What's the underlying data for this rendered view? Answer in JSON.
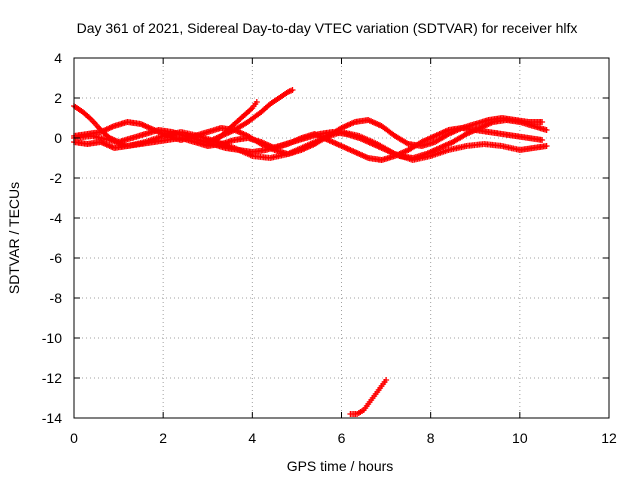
{
  "chart_data": {
    "type": "scatter",
    "title": "Day 361 of 2021, Sidereal Day-to-day VTEC variation (SDTVAR) for receiver hlfx",
    "xlabel": "GPS time / hours",
    "ylabel": "SDTVAR / TECUs",
    "xlim": [
      0,
      12
    ],
    "ylim": [
      -14,
      4
    ],
    "xticks": [
      "0",
      "2",
      "4",
      "6",
      "8",
      "10",
      "12"
    ],
    "yticks": [
      "4",
      "2",
      "0",
      "-2",
      "-4",
      "-6",
      "-8",
      "-10",
      "-12",
      "-14"
    ],
    "grid": true,
    "marker": "plus",
    "color": "#ff0000",
    "series": [
      {
        "x": [
          0.0,
          0.2,
          0.4,
          0.6,
          0.8,
          1.0,
          1.3,
          1.6,
          1.9,
          2.2,
          2.5,
          2.8,
          3.1,
          3.4,
          3.7,
          4.0,
          4.3,
          4.6,
          4.9,
          5.2,
          5.5,
          5.8,
          6.1,
          6.4,
          6.7,
          7.0,
          7.3,
          7.6,
          7.9,
          8.2,
          8.5,
          8.8,
          9.1,
          9.4,
          9.7,
          10.0,
          10.3,
          10.6
        ],
        "y": [
          1.6,
          1.3,
          0.9,
          0.4,
          0.0,
          -0.2,
          0.0,
          0.2,
          0.4,
          0.3,
          0.1,
          -0.1,
          -0.3,
          -0.5,
          -0.6,
          -0.7,
          -0.6,
          -0.4,
          -0.2,
          0.0,
          0.2,
          0.3,
          0.2,
          0.0,
          -0.3,
          -0.6,
          -0.9,
          -1.0,
          -0.8,
          -0.5,
          -0.2,
          0.2,
          0.5,
          0.8,
          0.9,
          0.8,
          0.6,
          0.4
        ]
      },
      {
        "x": [
          0.0,
          0.3,
          0.6,
          0.9,
          1.2,
          1.5,
          1.8,
          2.1,
          2.4,
          2.7,
          3.0,
          3.3,
          3.6,
          3.9,
          4.2,
          4.5,
          4.8,
          5.1,
          5.4,
          5.7,
          6.0,
          6.3,
          6.6,
          6.9,
          7.2,
          7.5,
          7.8,
          8.1,
          8.4,
          8.7,
          9.0,
          9.3,
          9.6,
          9.9,
          10.2,
          10.5
        ],
        "y": [
          0.1,
          0.2,
          0.3,
          0.6,
          0.8,
          0.7,
          0.4,
          0.1,
          -0.1,
          0.1,
          0.3,
          0.5,
          0.4,
          0.1,
          -0.3,
          -0.6,
          -0.8,
          -0.6,
          -0.3,
          0.1,
          0.5,
          0.8,
          0.9,
          0.6,
          0.1,
          -0.3,
          -0.4,
          -0.2,
          0.2,
          0.5,
          0.7,
          0.9,
          1.0,
          0.9,
          0.8,
          0.8
        ]
      },
      {
        "x": [
          0.0,
          0.3,
          0.6,
          0.9,
          1.2,
          1.5,
          1.8,
          2.1,
          2.4,
          2.7,
          3.0,
          3.3,
          3.6,
          3.9,
          4.2,
          4.5,
          4.8,
          5.1,
          5.4,
          5.7,
          6.0,
          6.3,
          6.6,
          6.9,
          7.2,
          7.5,
          7.8,
          8.1,
          8.4,
          8.7,
          9.0,
          9.3,
          9.6,
          9.9,
          10.2,
          10.5
        ],
        "y": [
          -0.2,
          -0.3,
          -0.2,
          -0.5,
          -0.4,
          -0.3,
          -0.2,
          -0.1,
          0.0,
          -0.2,
          -0.4,
          -0.3,
          -0.1,
          0.0,
          -0.2,
          -0.5,
          -0.3,
          0.0,
          0.2,
          -0.1,
          -0.4,
          -0.7,
          -1.0,
          -1.1,
          -0.9,
          -0.6,
          -0.2,
          0.1,
          0.4,
          0.5,
          0.4,
          0.3,
          0.2,
          0.1,
          0.0,
          -0.1
        ]
      },
      {
        "x": [
          0.0,
          0.4,
          0.8,
          1.2,
          1.6,
          2.0,
          2.4,
          2.8,
          3.2,
          3.6,
          4.0,
          4.4,
          4.8,
          5.2,
          5.6,
          6.0,
          6.4,
          6.8,
          7.2,
          7.6,
          8.0,
          8.4,
          8.8,
          9.2,
          9.6,
          10.0,
          10.3,
          10.6
        ],
        "y": [
          0.0,
          0.1,
          -0.1,
          -0.4,
          -0.2,
          0.1,
          0.3,
          0.1,
          -0.2,
          -0.5,
          -0.9,
          -1.0,
          -0.8,
          -0.4,
          0.0,
          0.3,
          0.1,
          -0.3,
          -0.8,
          -1.1,
          -0.9,
          -0.6,
          -0.4,
          -0.3,
          -0.4,
          -0.6,
          -0.5,
          -0.4
        ]
      },
      {
        "x": [
          3.0,
          3.3,
          3.6,
          3.9,
          4.2,
          4.4,
          4.6,
          4.8,
          4.9
        ],
        "y": [
          -0.2,
          0.1,
          0.4,
          0.8,
          1.3,
          1.7,
          2.0,
          2.3,
          2.4
        ]
      },
      {
        "x": [
          3.2,
          3.4,
          3.6,
          3.8,
          4.0,
          4.1
        ],
        "y": [
          -0.1,
          0.3,
          0.7,
          1.1,
          1.5,
          1.8
        ]
      },
      {
        "x": [
          6.2,
          6.35,
          6.5,
          6.6,
          6.7,
          6.8,
          6.9,
          7.0
        ],
        "y": [
          -13.8,
          -13.8,
          -13.6,
          -13.3,
          -13.0,
          -12.7,
          -12.4,
          -12.1
        ]
      }
    ]
  }
}
